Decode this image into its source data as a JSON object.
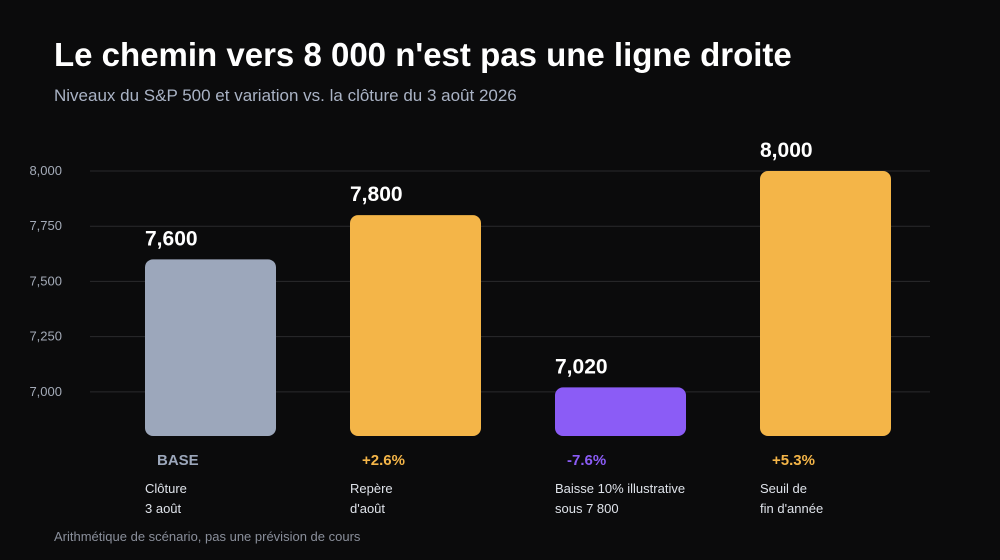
{
  "header": {
    "title": "Le chemin vers 8 000 n'est pas une ligne droite",
    "subtitle": "Niveaux du S&P 500 et variation vs. la clôture du 3 août 2026"
  },
  "footnote": "Arithmétique de scénario, pas une prévision de cours",
  "colors": {
    "base": "#9ca7bb",
    "up": "#f4b548",
    "down": "#8b5cf6",
    "grid": "#2a2a2d"
  },
  "chart_data": {
    "type": "bar",
    "title": "Le chemin vers 8 000 n'est pas une ligne droite",
    "subtitle": "Niveaux du S&P 500 et variation vs. la clôture du 3 août 2026",
    "categories": [
      [
        "Clôture",
        "3 août"
      ],
      [
        "Repère",
        "d'août"
      ],
      [
        "Baisse 10% illustrative",
        "sous 7 800"
      ],
      [
        "Seuil de",
        "fin d'année"
      ]
    ],
    "values": [
      7600,
      7800,
      7020,
      8000
    ],
    "value_labels": [
      "7,600",
      "7,800",
      "7,020",
      "8,000"
    ],
    "changes": [
      "BASE",
      "+2.6%",
      "-7.6%",
      "+5.3%"
    ],
    "bar_kinds": [
      "base",
      "up",
      "down",
      "up"
    ],
    "y_ticks": [
      7000,
      7250,
      7500,
      7750,
      8000
    ],
    "y_tick_labels": [
      "7,000",
      "7,250",
      "7,500",
      "7,750",
      "8,000"
    ],
    "ylim": [
      6800,
      8000
    ],
    "grid": true,
    "legend": "none"
  }
}
